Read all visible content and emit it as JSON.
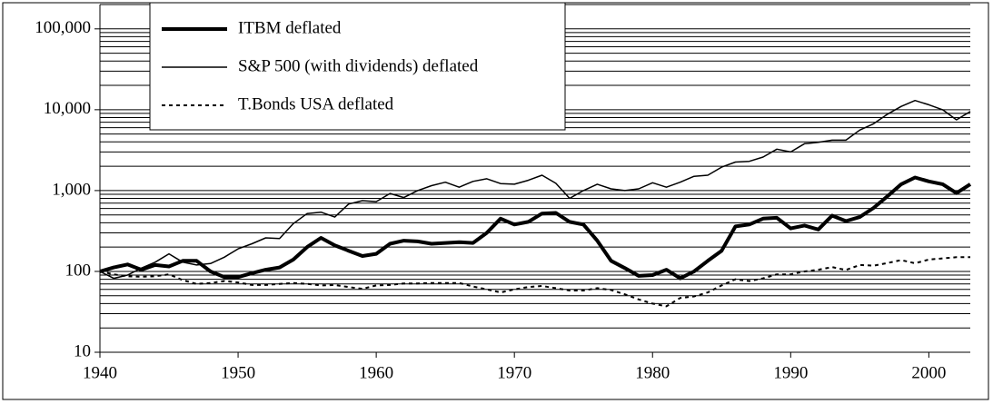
{
  "chart_data": {
    "type": "line",
    "log_scale": true,
    "grid": "minor",
    "x": [
      1940,
      1941,
      1942,
      1943,
      1944,
      1945,
      1946,
      1947,
      1948,
      1949,
      1950,
      1951,
      1952,
      1953,
      1954,
      1955,
      1956,
      1957,
      1958,
      1959,
      1960,
      1961,
      1962,
      1963,
      1964,
      1965,
      1966,
      1967,
      1968,
      1969,
      1970,
      1971,
      1972,
      1973,
      1974,
      1975,
      1976,
      1977,
      1978,
      1979,
      1980,
      1981,
      1982,
      1983,
      1984,
      1985,
      1986,
      1987,
      1988,
      1989,
      1990,
      1991,
      1992,
      1993,
      1994,
      1995,
      1996,
      1997,
      1998,
      1999,
      2000,
      2001,
      2002,
      2003
    ],
    "xlim": [
      1940,
      2003
    ],
    "xticks": [
      1940,
      1950,
      1960,
      1970,
      1980,
      1990,
      2000
    ],
    "ylim": [
      10,
      200000
    ],
    "yticks": [
      10,
      100,
      {
        "value": 1000,
        "label": "1,000"
      },
      {
        "value": 10000,
        "label": "10,000"
      },
      {
        "value": 100000,
        "label": "100,000"
      }
    ],
    "series": [
      {
        "name": "ITBM deflated",
        "color": "#000000",
        "width": 4,
        "dash": false,
        "values": [
          100,
          112,
          122,
          105,
          120,
          115,
          135,
          135,
          100,
          85,
          85,
          95,
          105,
          112,
          140,
          200,
          260,
          210,
          180,
          155,
          165,
          220,
          240,
          235,
          220,
          225,
          230,
          225,
          300,
          450,
          380,
          410,
          520,
          530,
          410,
          380,
          240,
          135,
          110,
          88,
          90,
          105,
          82,
          100,
          135,
          180,
          360,
          380,
          450,
          460,
          340,
          370,
          330,
          490,
          420,
          470,
          610,
          850,
          1200,
          1450,
          1300,
          1200,
          930,
          1200
        ]
      },
      {
        "name": "S&P 500 (with dividends) deflated",
        "color": "#000000",
        "width": 1.5,
        "dash": false,
        "values": [
          100,
          82,
          90,
          110,
          130,
          165,
          130,
          120,
          125,
          150,
          190,
          220,
          260,
          255,
          390,
          520,
          540,
          470,
          680,
          750,
          730,
          920,
          820,
          1000,
          1150,
          1270,
          1100,
          1300,
          1400,
          1220,
          1200,
          1340,
          1550,
          1230,
          800,
          1000,
          1200,
          1050,
          1000,
          1050,
          1250,
          1100,
          1270,
          1500,
          1550,
          1950,
          2250,
          2300,
          2600,
          3250,
          3000,
          3800,
          3950,
          4200,
          4200,
          5600,
          6700,
          8800,
          11000,
          13000,
          11500,
          10000,
          7500,
          9500
        ]
      },
      {
        "name": "T.Bonds USA deflated",
        "color": "#000000",
        "width": 2,
        "dash": true,
        "values": [
          100,
          92,
          87,
          86,
          87,
          92,
          78,
          70,
          72,
          76,
          73,
          68,
          68,
          70,
          72,
          70,
          67,
          68,
          64,
          61,
          67,
          68,
          71,
          71,
          72,
          72,
          72,
          65,
          60,
          55,
          60,
          64,
          66,
          62,
          58,
          58,
          62,
          59,
          52,
          45,
          40,
          37,
          47,
          49,
          55,
          67,
          80,
          76,
          82,
          92,
          92,
          100,
          105,
          113,
          104,
          120,
          118,
          127,
          138,
          126,
          140,
          145,
          150,
          150
        ]
      }
    ]
  }
}
